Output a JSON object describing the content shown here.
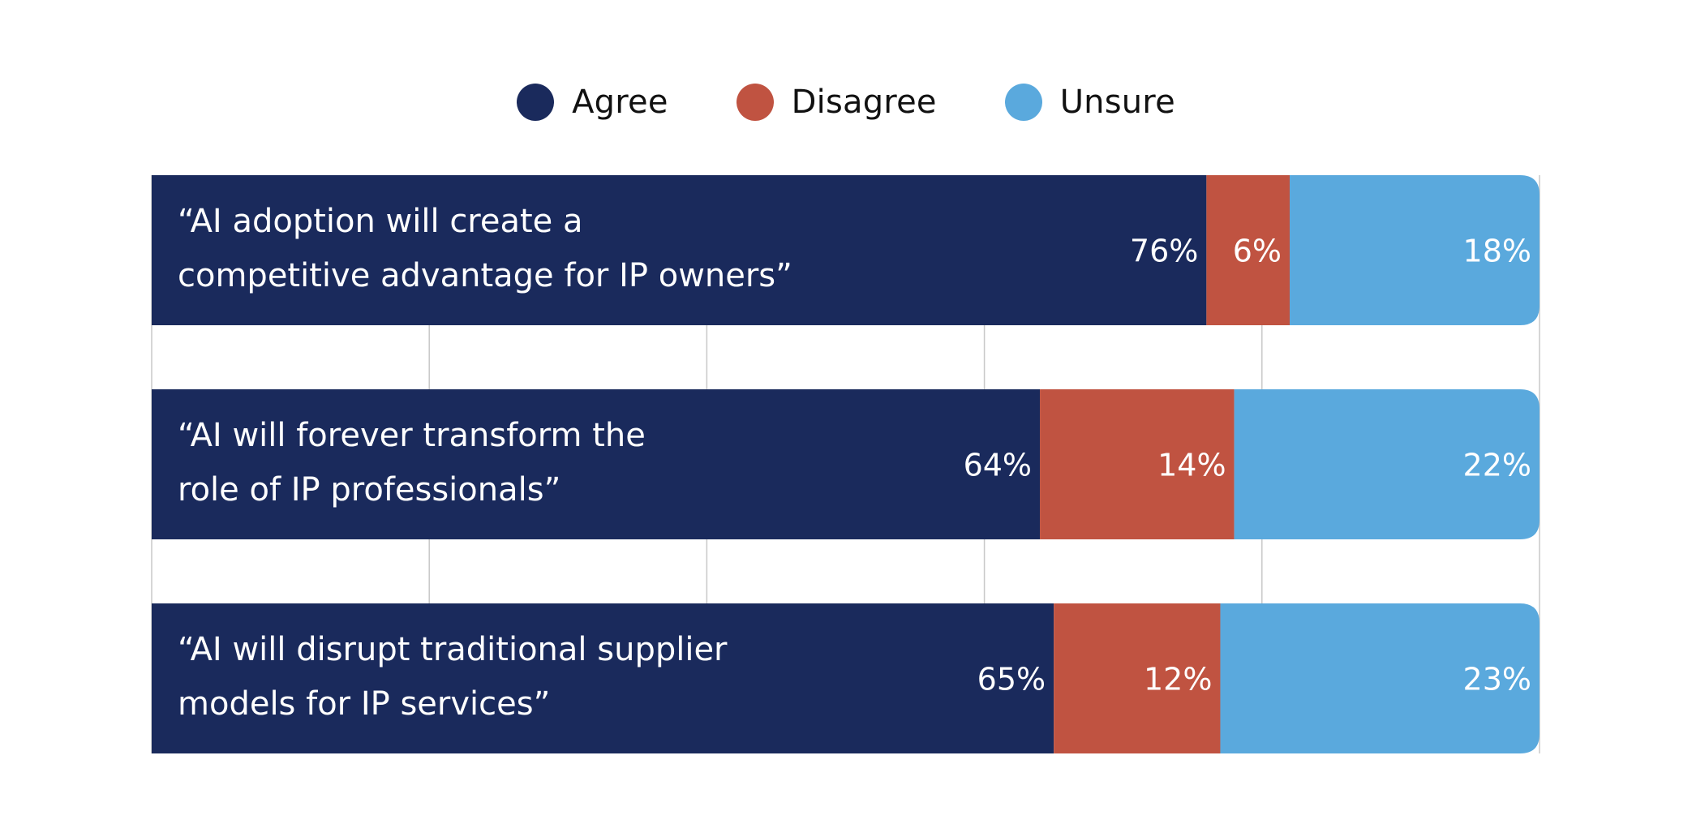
{
  "colors": {
    "agree": "#1a2a5c",
    "disagree": "#c05341",
    "unsure": "#5aa9dd",
    "grid": "#c8c8c8",
    "label_text": "#ffffff"
  },
  "legend": {
    "items": [
      {
        "label": "Agree",
        "color_key": "agree"
      },
      {
        "label": "Disagree",
        "color_key": "disagree"
      },
      {
        "label": "Unsure",
        "color_key": "unsure"
      }
    ],
    "placement": "top-center"
  },
  "chart_data": {
    "type": "bar",
    "orientation": "horizontal",
    "stacked": true,
    "xlim": [
      0,
      100
    ],
    "grid": true,
    "categories": [
      [
        "“AI adoption will create a",
        "competitive advantage for IP owners”"
      ],
      [
        "“AI will forever transform the",
        "role of IP professionals”"
      ],
      [
        "“AI will disrupt traditional supplier",
        "models for IP services”"
      ]
    ],
    "series": [
      {
        "name": "Agree",
        "values": [
          76,
          64,
          65
        ],
        "labels": [
          "76%",
          "64%",
          "65%"
        ]
      },
      {
        "name": "Disagree",
        "values": [
          6,
          14,
          12
        ],
        "labels": [
          "6%",
          "14%",
          "12%"
        ]
      },
      {
        "name": "Unsure",
        "values": [
          18,
          22,
          23
        ],
        "labels": [
          "18%",
          "22%",
          "23%"
        ]
      }
    ]
  }
}
